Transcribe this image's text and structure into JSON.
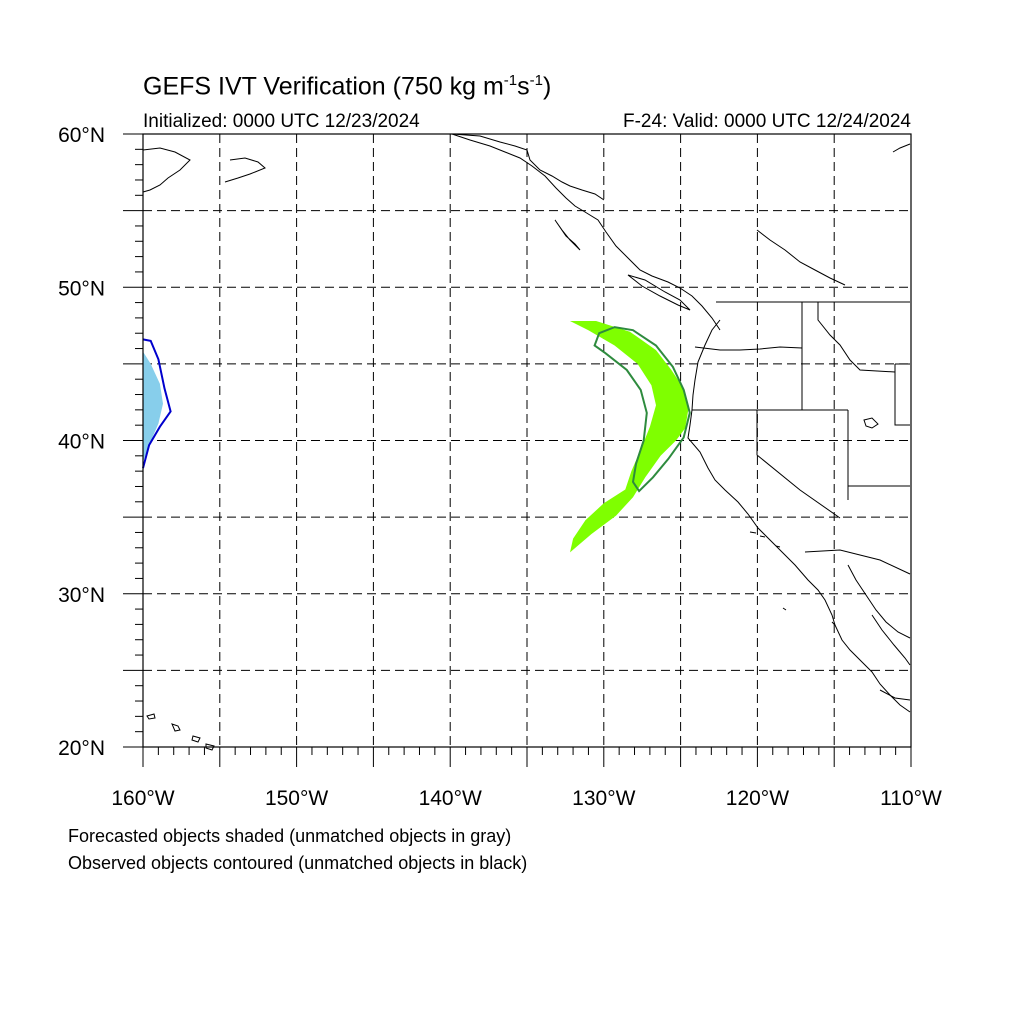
{
  "title": {
    "main": "GEFS IVT Verification (750 kg m",
    "sup1": "-1",
    "mid": "s",
    "sup2": "-1",
    "end": ")"
  },
  "subtitle": {
    "initialized": "Initialized: 0000 UTC 12/23/2024",
    "valid": "F-24: Valid: 0000 UTC 12/24/2024"
  },
  "map": {
    "projection": "cylindrical-equidistant",
    "lon_range": [
      -160,
      -110
    ],
    "lat_range": [
      20,
      60
    ],
    "gridlines": "dashed every 5 degrees",
    "lat_labels": [
      {
        "lat": 60,
        "label": "60°N"
      },
      {
        "lat": 50,
        "label": "50°N"
      },
      {
        "lat": 40,
        "label": "40°N"
      },
      {
        "lat": 30,
        "label": "30°N"
      },
      {
        "lat": 20,
        "label": "20°N"
      }
    ],
    "lon_labels": [
      {
        "lon": -160,
        "label": "160°W"
      },
      {
        "lon": -150,
        "label": "150°W"
      },
      {
        "lon": -140,
        "label": "140°W"
      },
      {
        "lon": -130,
        "label": "130°W"
      },
      {
        "lon": -120,
        "label": "120°W"
      },
      {
        "lon": -110,
        "label": "110°W"
      }
    ],
    "colors": {
      "forecast_matched_1": "#7fff00",
      "observed_matched_1": "#2e8b3e",
      "forecast_matched_2": "#87ceeb",
      "observed_matched_2": "#0000cd",
      "coastline": "#000000"
    },
    "objects": [
      {
        "name": "forecast-object-west-coast",
        "kind": "forecast",
        "color": "#7fff00",
        "points": [
          [
            -132.2,
            47.8
          ],
          [
            -130.5,
            47.8
          ],
          [
            -128.3,
            47.1
          ],
          [
            -126.6,
            45.9
          ],
          [
            -125.6,
            44.6
          ],
          [
            -124.8,
            43.4
          ],
          [
            -124.5,
            42.0
          ],
          [
            -124.7,
            40.8
          ],
          [
            -125.3,
            40.0
          ],
          [
            -126.3,
            39.0
          ],
          [
            -127.3,
            37.6
          ],
          [
            -128.1,
            36.3
          ],
          [
            -129.2,
            35.1
          ],
          [
            -130.8,
            33.9
          ],
          [
            -132.2,
            32.7
          ],
          [
            -132.0,
            33.6
          ],
          [
            -131.2,
            34.8
          ],
          [
            -130.0,
            35.9
          ],
          [
            -128.6,
            36.8
          ],
          [
            -128.2,
            38.0
          ],
          [
            -127.6,
            39.4
          ],
          [
            -127.0,
            40.9
          ],
          [
            -126.6,
            42.3
          ],
          [
            -126.9,
            43.6
          ],
          [
            -127.8,
            45.0
          ],
          [
            -129.3,
            46.2
          ],
          [
            -131.0,
            47.2
          ]
        ]
      },
      {
        "name": "observed-object-west-coast",
        "kind": "observed",
        "color": "#2e8b3e",
        "points": [
          [
            -130.6,
            46.2
          ],
          [
            -130.3,
            47.0
          ],
          [
            -129.3,
            47.4
          ],
          [
            -128.1,
            47.2
          ],
          [
            -126.6,
            46.2
          ],
          [
            -125.5,
            44.8
          ],
          [
            -124.8,
            43.3
          ],
          [
            -124.4,
            41.8
          ],
          [
            -124.8,
            40.2
          ],
          [
            -125.8,
            38.8
          ],
          [
            -126.8,
            37.6
          ],
          [
            -127.7,
            36.7
          ],
          [
            -128.1,
            37.3
          ],
          [
            -127.9,
            38.5
          ],
          [
            -127.4,
            40.0
          ],
          [
            -127.2,
            41.8
          ],
          [
            -127.6,
            43.3
          ],
          [
            -128.5,
            44.6
          ],
          [
            -129.9,
            45.7
          ]
        ]
      },
      {
        "name": "forecast-object-west-edge",
        "kind": "forecast",
        "color": "#87ceeb",
        "points": [
          [
            -160,
            45.8
          ],
          [
            -159.5,
            45.0
          ],
          [
            -158.9,
            43.7
          ],
          [
            -158.7,
            42.4
          ],
          [
            -159.0,
            41.1
          ],
          [
            -159.6,
            39.7
          ],
          [
            -160,
            38.6
          ]
        ]
      },
      {
        "name": "observed-object-west-edge",
        "kind": "observed",
        "color": "#0000cd",
        "points": [
          [
            -160,
            46.6
          ],
          [
            -159.5,
            46.5
          ],
          [
            -159.0,
            45.3
          ],
          [
            -158.6,
            43.4
          ],
          [
            -158.2,
            41.9
          ],
          [
            -158.9,
            40.9
          ],
          [
            -159.6,
            39.7
          ],
          [
            -160,
            38.2
          ]
        ]
      }
    ]
  },
  "footnotes": [
    "Forecasted objects shaded (unmatched objects in gray)",
    "Observed objects contoured (unmatched objects in black)"
  ]
}
